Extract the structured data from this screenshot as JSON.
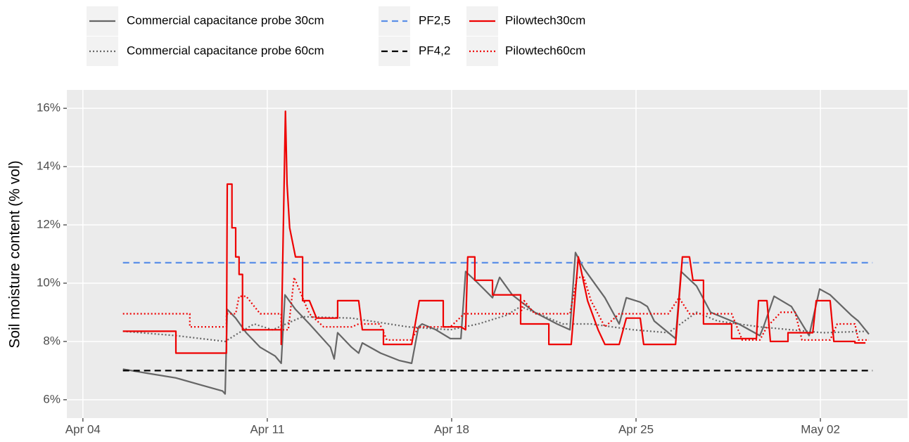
{
  "chart_data": {
    "type": "line",
    "y_label": "Soil moisture content (% vol)",
    "xlim": [
      3.39,
      35.31
    ],
    "xticks": [
      {
        "value": 4,
        "label": "Apr 04"
      },
      {
        "value": 11,
        "label": "Apr 11"
      },
      {
        "value": 18,
        "label": "Apr 18"
      },
      {
        "value": 25,
        "label": "Apr 25"
      },
      {
        "value": 32,
        "label": "May 02"
      }
    ],
    "ylim": [
      5.37,
      16.63
    ],
    "yticks": [
      {
        "value": 6,
        "label": "6%"
      },
      {
        "value": 8,
        "label": "8%"
      },
      {
        "value": 10,
        "label": "10%"
      },
      {
        "value": 12,
        "label": "12%"
      },
      {
        "value": 14,
        "label": "14%"
      },
      {
        "value": 16,
        "label": "16%"
      }
    ],
    "grid": true,
    "legend": "top",
    "series": [
      {
        "name": "Commercial capacitance probe 30cm",
        "color": "#666666",
        "dash": "solid",
        "x": [
          5.52,
          6.5,
          7.53,
          8.5,
          9.3,
          9.4,
          9.48,
          9.8,
          10.2,
          10.73,
          11.3,
          11.53,
          11.67,
          12.07,
          12.6,
          13.4,
          13.54,
          13.67,
          14.2,
          14.47,
          14.61,
          15.3,
          16.0,
          16.48,
          16.74,
          16.88,
          17.4,
          17.95,
          18.35,
          18.53,
          19.0,
          19.55,
          19.82,
          20.3,
          21.15,
          22.0,
          22.49,
          22.7,
          23.02,
          23.82,
          24.36,
          24.63,
          25.16,
          25.43,
          25.69,
          26.23,
          26.5,
          26.71,
          27.3,
          27.83,
          28.9,
          29.7,
          29.84,
          30.24,
          30.9,
          31.57,
          31.97,
          32.37,
          33.17,
          33.44,
          33.84
        ],
        "values": [
          7.05,
          6.9,
          6.75,
          6.5,
          6.3,
          6.2,
          9.1,
          8.8,
          8.3,
          7.8,
          7.5,
          7.25,
          9.6,
          9.1,
          8.6,
          7.8,
          7.4,
          8.3,
          7.8,
          7.6,
          7.95,
          7.6,
          7.35,
          7.25,
          8.5,
          8.6,
          8.4,
          8.1,
          8.1,
          10.4,
          10.0,
          9.5,
          10.2,
          9.6,
          9.0,
          8.6,
          8.4,
          11.05,
          10.5,
          9.5,
          8.6,
          9.5,
          9.35,
          9.2,
          8.7,
          8.3,
          8.1,
          10.4,
          9.9,
          9.0,
          8.6,
          8.2,
          8.5,
          9.55,
          9.2,
          8.2,
          9.8,
          9.6,
          8.9,
          8.7,
          8.25
        ]
      },
      {
        "name": "Commercial capacitance probe 60cm",
        "color": "#666666",
        "dash": "dotted",
        "x": [
          5.52,
          7.53,
          9.4,
          9.93,
          10.5,
          11.2,
          12.34,
          14.21,
          16.34,
          17.95,
          19.01,
          20.08,
          20.62,
          22.22,
          23.29,
          24.89,
          26.23,
          27.3,
          28.1,
          29.7,
          32.1,
          33.84
        ],
        "values": [
          8.35,
          8.2,
          8.0,
          8.3,
          8.6,
          8.4,
          8.85,
          8.8,
          8.5,
          8.4,
          8.6,
          8.9,
          9.2,
          8.6,
          8.6,
          8.4,
          8.3,
          9.0,
          8.7,
          8.5,
          8.3,
          8.35
        ]
      },
      {
        "name": "PF2,5",
        "color": "#5b8fe8",
        "dash": "dashed",
        "x": [
          5.52,
          33.98
        ],
        "values": [
          10.7,
          10.7
        ]
      },
      {
        "name": "PF4,2",
        "color": "#000000",
        "dash": "dashed",
        "x": [
          5.52,
          33.98
        ],
        "values": [
          7.0,
          7.0
        ]
      },
      {
        "name": "Pilowtech30cm",
        "color": "#ee0000",
        "dash": "solid",
        "x": [
          5.52,
          7.53,
          7.53,
          9.45,
          9.48,
          9.66,
          9.66,
          9.8,
          9.8,
          9.93,
          9.93,
          10.06,
          10.06,
          11.53,
          11.53,
          11.69,
          11.75,
          11.85,
          12.07,
          12.34,
          12.34,
          12.6,
          12.87,
          13.67,
          13.67,
          14.47,
          14.61,
          15.41,
          15.41,
          16.48,
          16.77,
          17.68,
          17.68,
          18.35,
          18.53,
          18.61,
          18.88,
          18.88,
          19.55,
          19.55,
          20.62,
          20.62,
          21.69,
          21.69,
          22.54,
          22.81,
          23.16,
          23.56,
          23.82,
          24.36,
          24.63,
          25.16,
          25.29,
          26.5,
          26.76,
          27.03,
          27.16,
          27.56,
          27.56,
          28.63,
          28.63,
          29.57,
          29.65,
          29.97,
          30.1,
          30.77,
          30.77,
          31.71,
          31.84,
          32.37,
          32.51,
          33.31,
          33.31,
          33.71
        ],
        "values": [
          8.35,
          8.35,
          7.6,
          7.6,
          13.4,
          13.4,
          11.9,
          11.9,
          10.9,
          10.9,
          10.3,
          10.3,
          8.4,
          8.4,
          7.9,
          15.9,
          13.4,
          11.9,
          10.9,
          10.9,
          9.4,
          9.4,
          8.8,
          8.8,
          9.4,
          9.4,
          8.4,
          8.4,
          7.9,
          7.9,
          9.4,
          9.4,
          8.5,
          8.5,
          8.4,
          10.9,
          10.9,
          10.1,
          10.1,
          9.6,
          9.6,
          8.6,
          8.6,
          7.9,
          7.9,
          10.9,
          9.4,
          8.4,
          7.9,
          7.9,
          8.8,
          8.8,
          7.9,
          7.9,
          10.9,
          10.9,
          10.1,
          10.1,
          8.6,
          8.6,
          8.1,
          8.1,
          9.4,
          9.4,
          8.0,
          8.0,
          8.3,
          8.3,
          9.4,
          9.4,
          8.0,
          8.0,
          7.95,
          7.95
        ]
      },
      {
        "name": "Pilowtech60cm",
        "color": "#ee0000",
        "dash": "dotted",
        "x": [
          5.52,
          8.06,
          8.06,
          9.45,
          9.45,
          9.8,
          9.93,
          10.2,
          10.73,
          11.53,
          11.53,
          11.8,
          12.02,
          12.34,
          12.6,
          13.14,
          14.21,
          14.47,
          15.27,
          15.54,
          16.48,
          16.74,
          17.95,
          18.48,
          20.62,
          20.75,
          21.15,
          22.49,
          22.76,
          23.02,
          23.29,
          23.82,
          24.36,
          26.23,
          26.63,
          27.03,
          28.63,
          29.03,
          29.7,
          29.97,
          30.5,
          31.04,
          31.3,
          32.37,
          32.64,
          33.31,
          33.44,
          33.84
        ],
        "values": [
          8.95,
          8.95,
          8.5,
          8.5,
          8.95,
          8.95,
          9.55,
          9.55,
          8.95,
          8.95,
          8.4,
          8.4,
          10.2,
          9.5,
          8.95,
          8.5,
          8.5,
          8.6,
          8.6,
          8.05,
          8.05,
          8.5,
          8.5,
          8.95,
          8.95,
          9.4,
          8.95,
          8.95,
          10.2,
          10.2,
          9.4,
          8.5,
          8.95,
          8.95,
          9.5,
          8.95,
          8.95,
          8.05,
          8.05,
          8.5,
          9.0,
          9.0,
          8.05,
          8.05,
          8.6,
          8.6,
          8.05,
          8.05
        ]
      }
    ]
  }
}
